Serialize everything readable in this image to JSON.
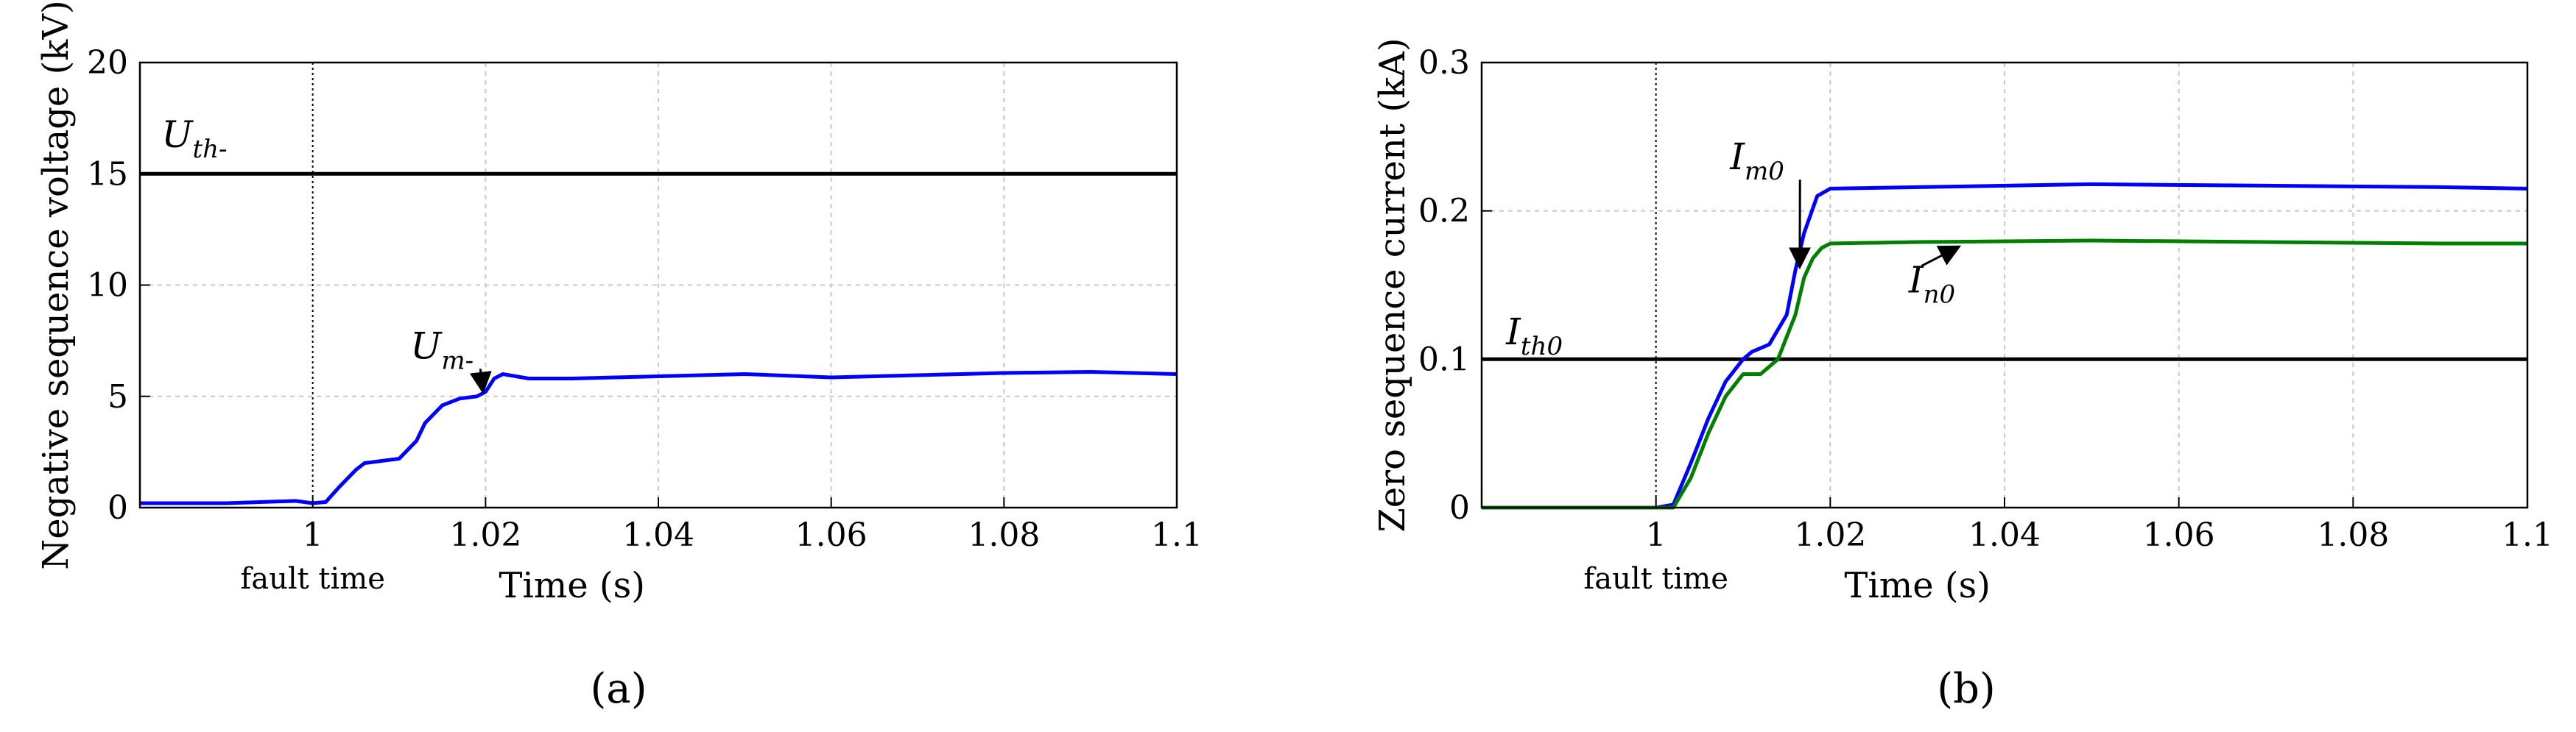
{
  "chart_data": [
    {
      "type": "line",
      "panel_label": "(a)",
      "ylabel": "Negative sequence voltage (kV)",
      "xlabel": "Time (s)",
      "xlim": [
        0.98,
        1.1
      ],
      "ylim": [
        0,
        20
      ],
      "xticks": [
        1,
        1.02,
        1.04,
        1.06,
        1.08,
        1.1
      ],
      "xtick_labels": [
        "1",
        "1.02",
        "1.04",
        "1.06",
        "1.08",
        "1.1"
      ],
      "yticks": [
        0,
        5,
        10,
        15,
        20
      ],
      "ytick_labels": [
        "0",
        "5",
        "10",
        "15",
        "20"
      ],
      "grid": true,
      "fault_marker": {
        "x": 1.0,
        "label": "fault time"
      },
      "series": [
        {
          "name": "U_th-",
          "color": "#000000",
          "x": [
            0.98,
            1.1
          ],
          "y": [
            15,
            15
          ]
        },
        {
          "name": "U_m-",
          "color": "#0000ff",
          "x": [
            0.98,
            0.99,
            0.998,
            1.0,
            1.0015,
            1.003,
            1.005,
            1.006,
            1.008,
            1.01,
            1.012,
            1.013,
            1.015,
            1.017,
            1.019,
            1.02,
            1.021,
            1.022,
            1.025,
            1.03,
            1.04,
            1.05,
            1.06,
            1.07,
            1.08,
            1.09,
            1.1
          ],
          "y": [
            0.2,
            0.2,
            0.3,
            0.2,
            0.25,
            0.9,
            1.7,
            2.0,
            2.1,
            2.2,
            3.0,
            3.8,
            4.6,
            4.9,
            5.0,
            5.2,
            5.8,
            6.0,
            5.8,
            5.8,
            5.9,
            6.0,
            5.85,
            5.95,
            6.05,
            6.1,
            6.0
          ]
        }
      ],
      "annotations": [
        {
          "main": "U",
          "sub": "th-",
          "x": 0.9825,
          "y": 16.2
        },
        {
          "main": "U",
          "sub": "m-",
          "x": 1.0113,
          "y": 6.7,
          "arrow_to": [
            1.0197,
            5.2
          ]
        }
      ]
    },
    {
      "type": "line",
      "panel_label": "(b)",
      "ylabel": "Zero sequence current (kA)",
      "xlabel": "Time (s)",
      "xlim": [
        0.98,
        1.1
      ],
      "ylim": [
        0,
        0.3
      ],
      "xticks": [
        1,
        1.02,
        1.04,
        1.06,
        1.08,
        1.1
      ],
      "xtick_labels": [
        "1",
        "1.02",
        "1.04",
        "1.06",
        "1.08",
        "1.1"
      ],
      "yticks": [
        0,
        0.1,
        0.2,
        0.3
      ],
      "ytick_labels": [
        "0",
        "0.1",
        "0.2",
        "0.3"
      ],
      "grid": true,
      "fault_marker": {
        "x": 1.0,
        "label": "fault time"
      },
      "series": [
        {
          "name": "I_th0",
          "color": "#000000",
          "x": [
            0.98,
            1.1
          ],
          "y": [
            0.1,
            0.1
          ]
        },
        {
          "name": "I_m0",
          "color": "#0000ff",
          "x": [
            0.98,
            1.0,
            1.002,
            1.004,
            1.006,
            1.008,
            1.01,
            1.011,
            1.013,
            1.015,
            1.016,
            1.017,
            1.0185,
            1.02,
            1.03,
            1.05,
            1.07,
            1.09,
            1.1
          ],
          "y": [
            0,
            0,
            0.002,
            0.03,
            0.06,
            0.085,
            0.1,
            0.105,
            0.11,
            0.13,
            0.16,
            0.185,
            0.21,
            0.215,
            0.216,
            0.218,
            0.217,
            0.216,
            0.215
          ]
        },
        {
          "name": "I_n0",
          "color": "#008000",
          "x": [
            0.98,
            1.002,
            1.004,
            1.006,
            1.008,
            1.01,
            1.012,
            1.014,
            1.016,
            1.017,
            1.018,
            1.019,
            1.02,
            1.03,
            1.05,
            1.07,
            1.09,
            1.1
          ],
          "y": [
            0,
            0,
            0.02,
            0.05,
            0.075,
            0.09,
            0.09,
            0.1,
            0.13,
            0.155,
            0.168,
            0.175,
            0.178,
            0.179,
            0.18,
            0.179,
            0.178,
            0.178
          ]
        }
      ],
      "annotations": [
        {
          "main": "I",
          "sub": "th0",
          "x": 0.9828,
          "y": 0.11
        },
        {
          "main": "I",
          "sub": "m0",
          "x": 1.0085,
          "y": 0.228,
          "arrow_to": [
            1.0165,
            0.162
          ]
        },
        {
          "main": "I",
          "sub": "n0",
          "x": 1.029,
          "y": 0.145,
          "arrow_from": [
            1.0305,
            0.163
          ],
          "arrow_to": [
            1.0348,
            0.176
          ]
        }
      ]
    }
  ]
}
